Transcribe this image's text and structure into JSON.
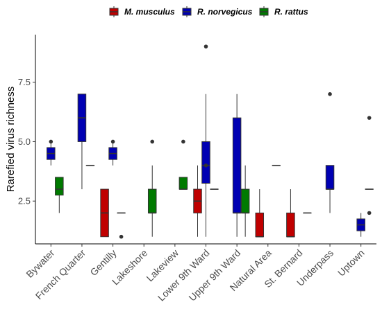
{
  "chart_data": {
    "type": "boxplot",
    "ylabel": "Rarefied virus richness",
    "ylim": [
      0.7,
      9.5
    ],
    "y_ticks": [
      2.5,
      5.0,
      7.5
    ],
    "y_tick_labels": [
      "2.5",
      "5.0",
      "7.5"
    ],
    "grid": false,
    "legend_position": "top",
    "categories": [
      "Bywater",
      "French Quarter",
      "Gentilly",
      "Lakeshore",
      "Lakeview",
      "Lower 9th Ward",
      "Upper 9th Ward",
      "Natural Area",
      "St. Bernard",
      "Underpass",
      "Uptown"
    ],
    "series": [
      {
        "name": "M. musculus",
        "color": "#c00000",
        "boxes": [
          {
            "category": "Gentilly",
            "whisker_low": 1.0,
            "q1": 1.0,
            "median": 2.0,
            "q3": 3.0,
            "whisker_high": 3.0,
            "outliers": []
          },
          {
            "category": "Lower 9th Ward",
            "whisker_low": 1.0,
            "q1": 2.0,
            "median": 2.5,
            "q3": 3.0,
            "whisker_high": 4.0,
            "outliers": []
          },
          {
            "category": "Natural Area",
            "whisker_low": 1.0,
            "q1": 1.0,
            "median": 1.0,
            "q3": 2.0,
            "whisker_high": 3.0,
            "outliers": []
          },
          {
            "category": "St. Bernard",
            "whisker_low": 1.0,
            "q1": 1.0,
            "median": 1.0,
            "q3": 2.0,
            "whisker_high": 3.0,
            "outliers": []
          }
        ]
      },
      {
        "name": "R. norvegicus",
        "color": "#0000b3",
        "boxes": [
          {
            "category": "Bywater",
            "whisker_low": 4.0,
            "q1": 4.25,
            "median": 4.5,
            "q3": 4.75,
            "whisker_high": 5.0,
            "outliers": [
              5.0
            ]
          },
          {
            "category": "French Quarter",
            "whisker_low": 3.0,
            "q1": 5.0,
            "median": 6.0,
            "q3": 7.0,
            "whisker_high": 7.0,
            "outliers": []
          },
          {
            "category": "Gentilly",
            "whisker_low": 4.0,
            "q1": 4.25,
            "median": 4.5,
            "q3": 4.75,
            "whisker_high": 5.0,
            "outliers": [
              5.0
            ]
          },
          {
            "category": "Lower 9th Ward",
            "whisker_low": 1.0,
            "q1": 3.25,
            "median": 4.0,
            "q3": 5.0,
            "whisker_high": 7.0,
            "outliers": [
              9.0,
              4.0
            ]
          },
          {
            "category": "Upper 9th Ward",
            "whisker_low": 1.0,
            "q1": 2.0,
            "median": 2.0,
            "q3": 6.0,
            "whisker_high": 7.0,
            "outliers": []
          },
          {
            "category": "Underpass",
            "whisker_low": 2.0,
            "q1": 3.0,
            "median": 3.0,
            "q3": 4.0,
            "whisker_high": 4.0,
            "outliers": [
              7.0
            ]
          },
          {
            "category": "Uptown",
            "whisker_low": 1.0,
            "q1": 1.25,
            "median": 1.5,
            "q3": 1.75,
            "whisker_high": 2.0,
            "outliers": []
          }
        ]
      },
      {
        "name": "R. rattus",
        "color": "#007a00",
        "boxes": [
          {
            "category": "Bywater",
            "whisker_low": 2.0,
            "q1": 2.75,
            "median": 3.0,
            "q3": 3.5,
            "whisker_high": 3.5,
            "outliers": []
          },
          {
            "category": "French Quarter",
            "whisker_low": 4.0,
            "q1": 4.0,
            "median": 4.0,
            "q3": 4.0,
            "whisker_high": 4.0,
            "outliers": []
          },
          {
            "category": "Gentilly",
            "whisker_low": 2.0,
            "q1": 2.0,
            "median": 2.0,
            "q3": 2.0,
            "whisker_high": 2.0,
            "outliers": [
              1.0
            ]
          },
          {
            "category": "Lakeshore",
            "whisker_low": 1.0,
            "q1": 2.0,
            "median": 2.0,
            "q3": 3.0,
            "whisker_high": 4.0,
            "outliers": [
              5.0
            ]
          },
          {
            "category": "Lakeview",
            "whisker_low": 3.0,
            "q1": 3.0,
            "median": 3.0,
            "q3": 3.5,
            "whisker_high": 3.5,
            "outliers": [
              5.0
            ]
          },
          {
            "category": "Lower 9th Ward",
            "whisker_low": 3.0,
            "q1": 3.0,
            "median": 3.0,
            "q3": 3.0,
            "whisker_high": 3.0,
            "outliers": []
          },
          {
            "category": "Upper 9th Ward",
            "whisker_low": 1.0,
            "q1": 2.0,
            "median": 2.0,
            "q3": 3.0,
            "whisker_high": 4.0,
            "outliers": []
          },
          {
            "category": "Natural Area",
            "whisker_low": 4.0,
            "q1": 4.0,
            "median": 4.0,
            "q3": 4.0,
            "whisker_high": 4.0,
            "outliers": []
          },
          {
            "category": "St. Bernard",
            "whisker_low": 2.0,
            "q1": 2.0,
            "median": 2.0,
            "q3": 2.0,
            "whisker_high": 2.0,
            "outliers": []
          },
          {
            "category": "Uptown",
            "whisker_low": 3.0,
            "q1": 3.0,
            "median": 3.0,
            "q3": 3.0,
            "whisker_high": 3.0,
            "outliers": [
              6.0,
              2.0
            ]
          }
        ]
      }
    ]
  }
}
